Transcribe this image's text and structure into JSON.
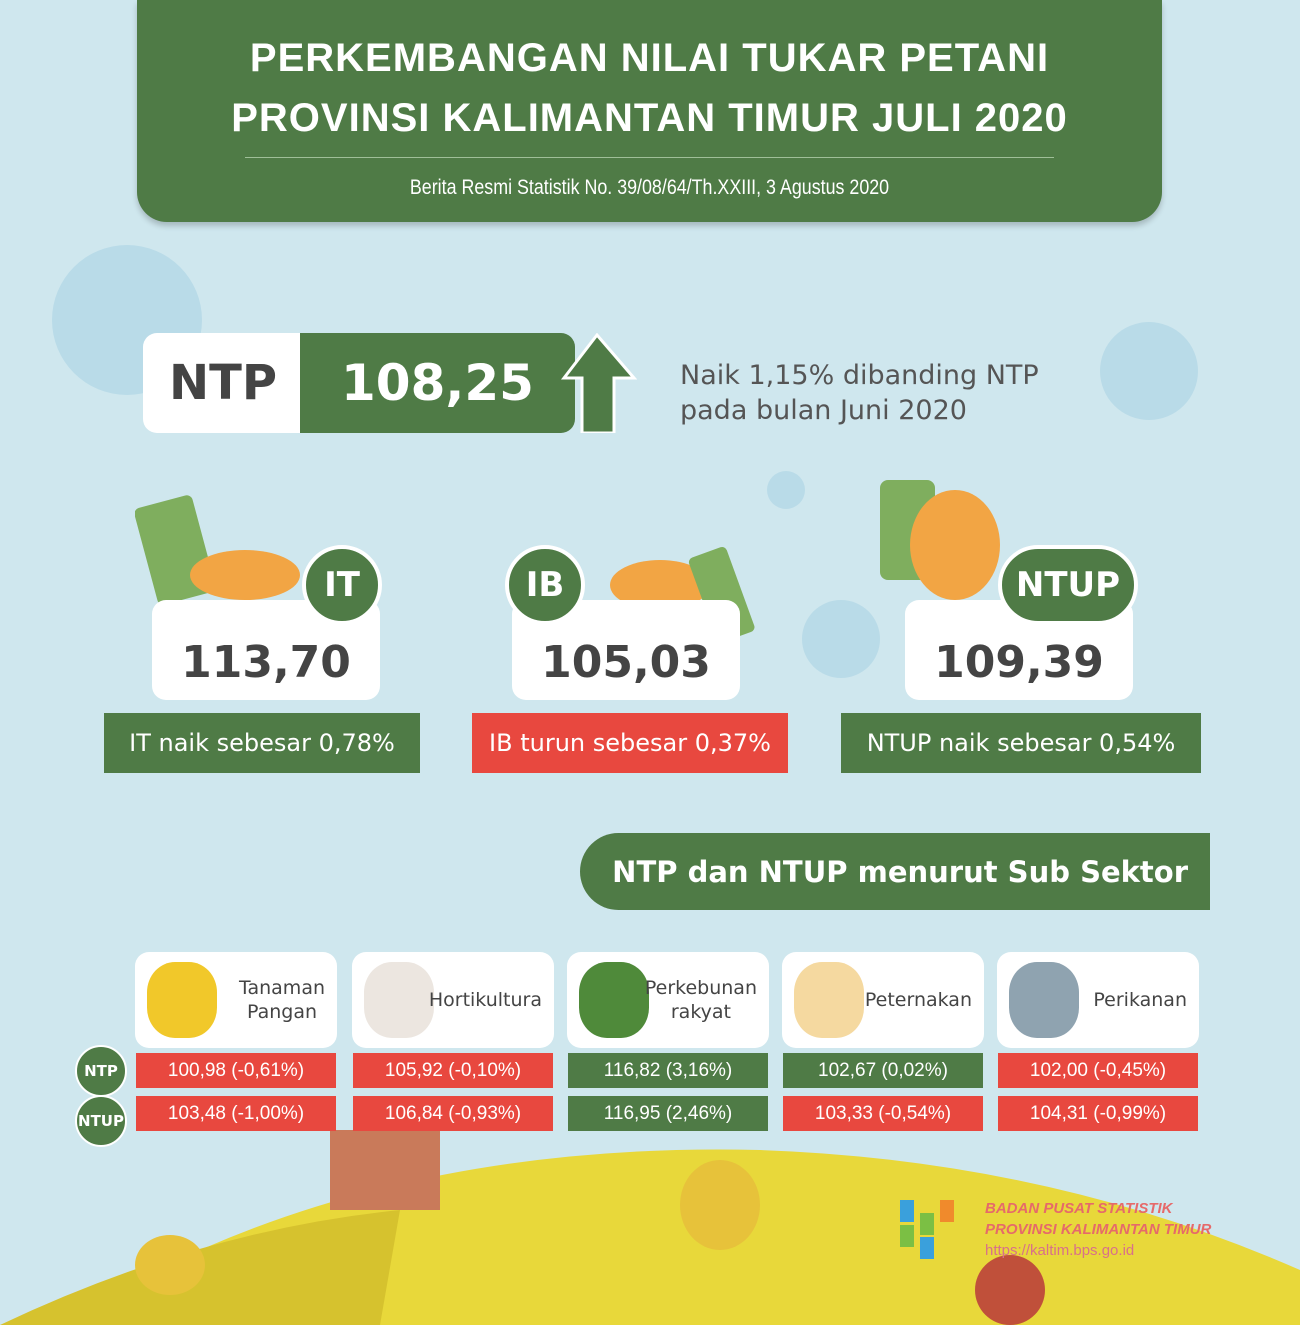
{
  "header": {
    "title_line1": "PERKEMBANGAN NILAI TUKAR PETANI",
    "title_line2": "PROVINSI KALIMANTAN TIMUR JULI 2020",
    "subtitle": "Berita Resmi Statistik No. 39/08/64/Th.XXIII, 3 Agustus 2020"
  },
  "ntp": {
    "label": "NTP",
    "value": "108,25",
    "trend": "up",
    "desc_line1": "Naik 1,15% dibanding NTP",
    "desc_line2": "pada bulan Juni 2020"
  },
  "indices": [
    {
      "badge": "IT",
      "value": "113,70",
      "note": "IT naik sebesar 0,78%",
      "status": "up"
    },
    {
      "badge": "IB",
      "value": "105,03",
      "note": "IB turun sebesar 0,37%",
      "status": "down"
    },
    {
      "badge": "NTUP",
      "value": "109,39",
      "note": "NTUP naik sebesar 0,54%",
      "status": "up"
    }
  ],
  "subsector": {
    "title": "NTP dan NTUP menurut Sub Sektor",
    "row_labels": [
      "NTP",
      "NTUP"
    ],
    "sectors": [
      {
        "name_line1": "Tanaman",
        "name_line2": "Pangan",
        "icon": "corn-icon",
        "ntp": "100,98 (-0,61%)",
        "ntp_status": "down",
        "ntup": "103,48 (-1,00%)",
        "ntup_status": "down"
      },
      {
        "name_line1": "Hortikultura",
        "name_line2": "",
        "icon": "garlic-icon",
        "ntp": "105,92 (-0,10%)",
        "ntp_status": "down",
        "ntup": "106,84 (-0,93%)",
        "ntup_status": "down"
      },
      {
        "name_line1": "Perkebunan",
        "name_line2": "rakyat",
        "icon": "palm-tree-icon",
        "ntp": "116,82 (3,16%)",
        "ntp_status": "up",
        "ntup": "116,95 (2,46%)",
        "ntup_status": "up"
      },
      {
        "name_line1": "Peternakan",
        "name_line2": "",
        "icon": "chicken-icon",
        "ntp": "102,67 (0,02%)",
        "ntp_status": "up",
        "ntup": "103,33 (-0,54%)",
        "ntup_status": "down"
      },
      {
        "name_line1": "Perikanan",
        "name_line2": "",
        "icon": "fish-icon",
        "ntp": "102,00 (-0,45%)",
        "ntp_status": "down",
        "ntup": "104,31 (-0,99%)",
        "ntup_status": "down"
      }
    ]
  },
  "footer": {
    "org_line1": "BADAN PUSAT STATISTIK",
    "org_line2": "PROVINSI KALIMANTAN TIMUR",
    "url": "https://kaltim.bps.go.id"
  },
  "colors": {
    "green": "#4f7b46",
    "red": "#e8483f",
    "background": "#cfe7ee"
  }
}
